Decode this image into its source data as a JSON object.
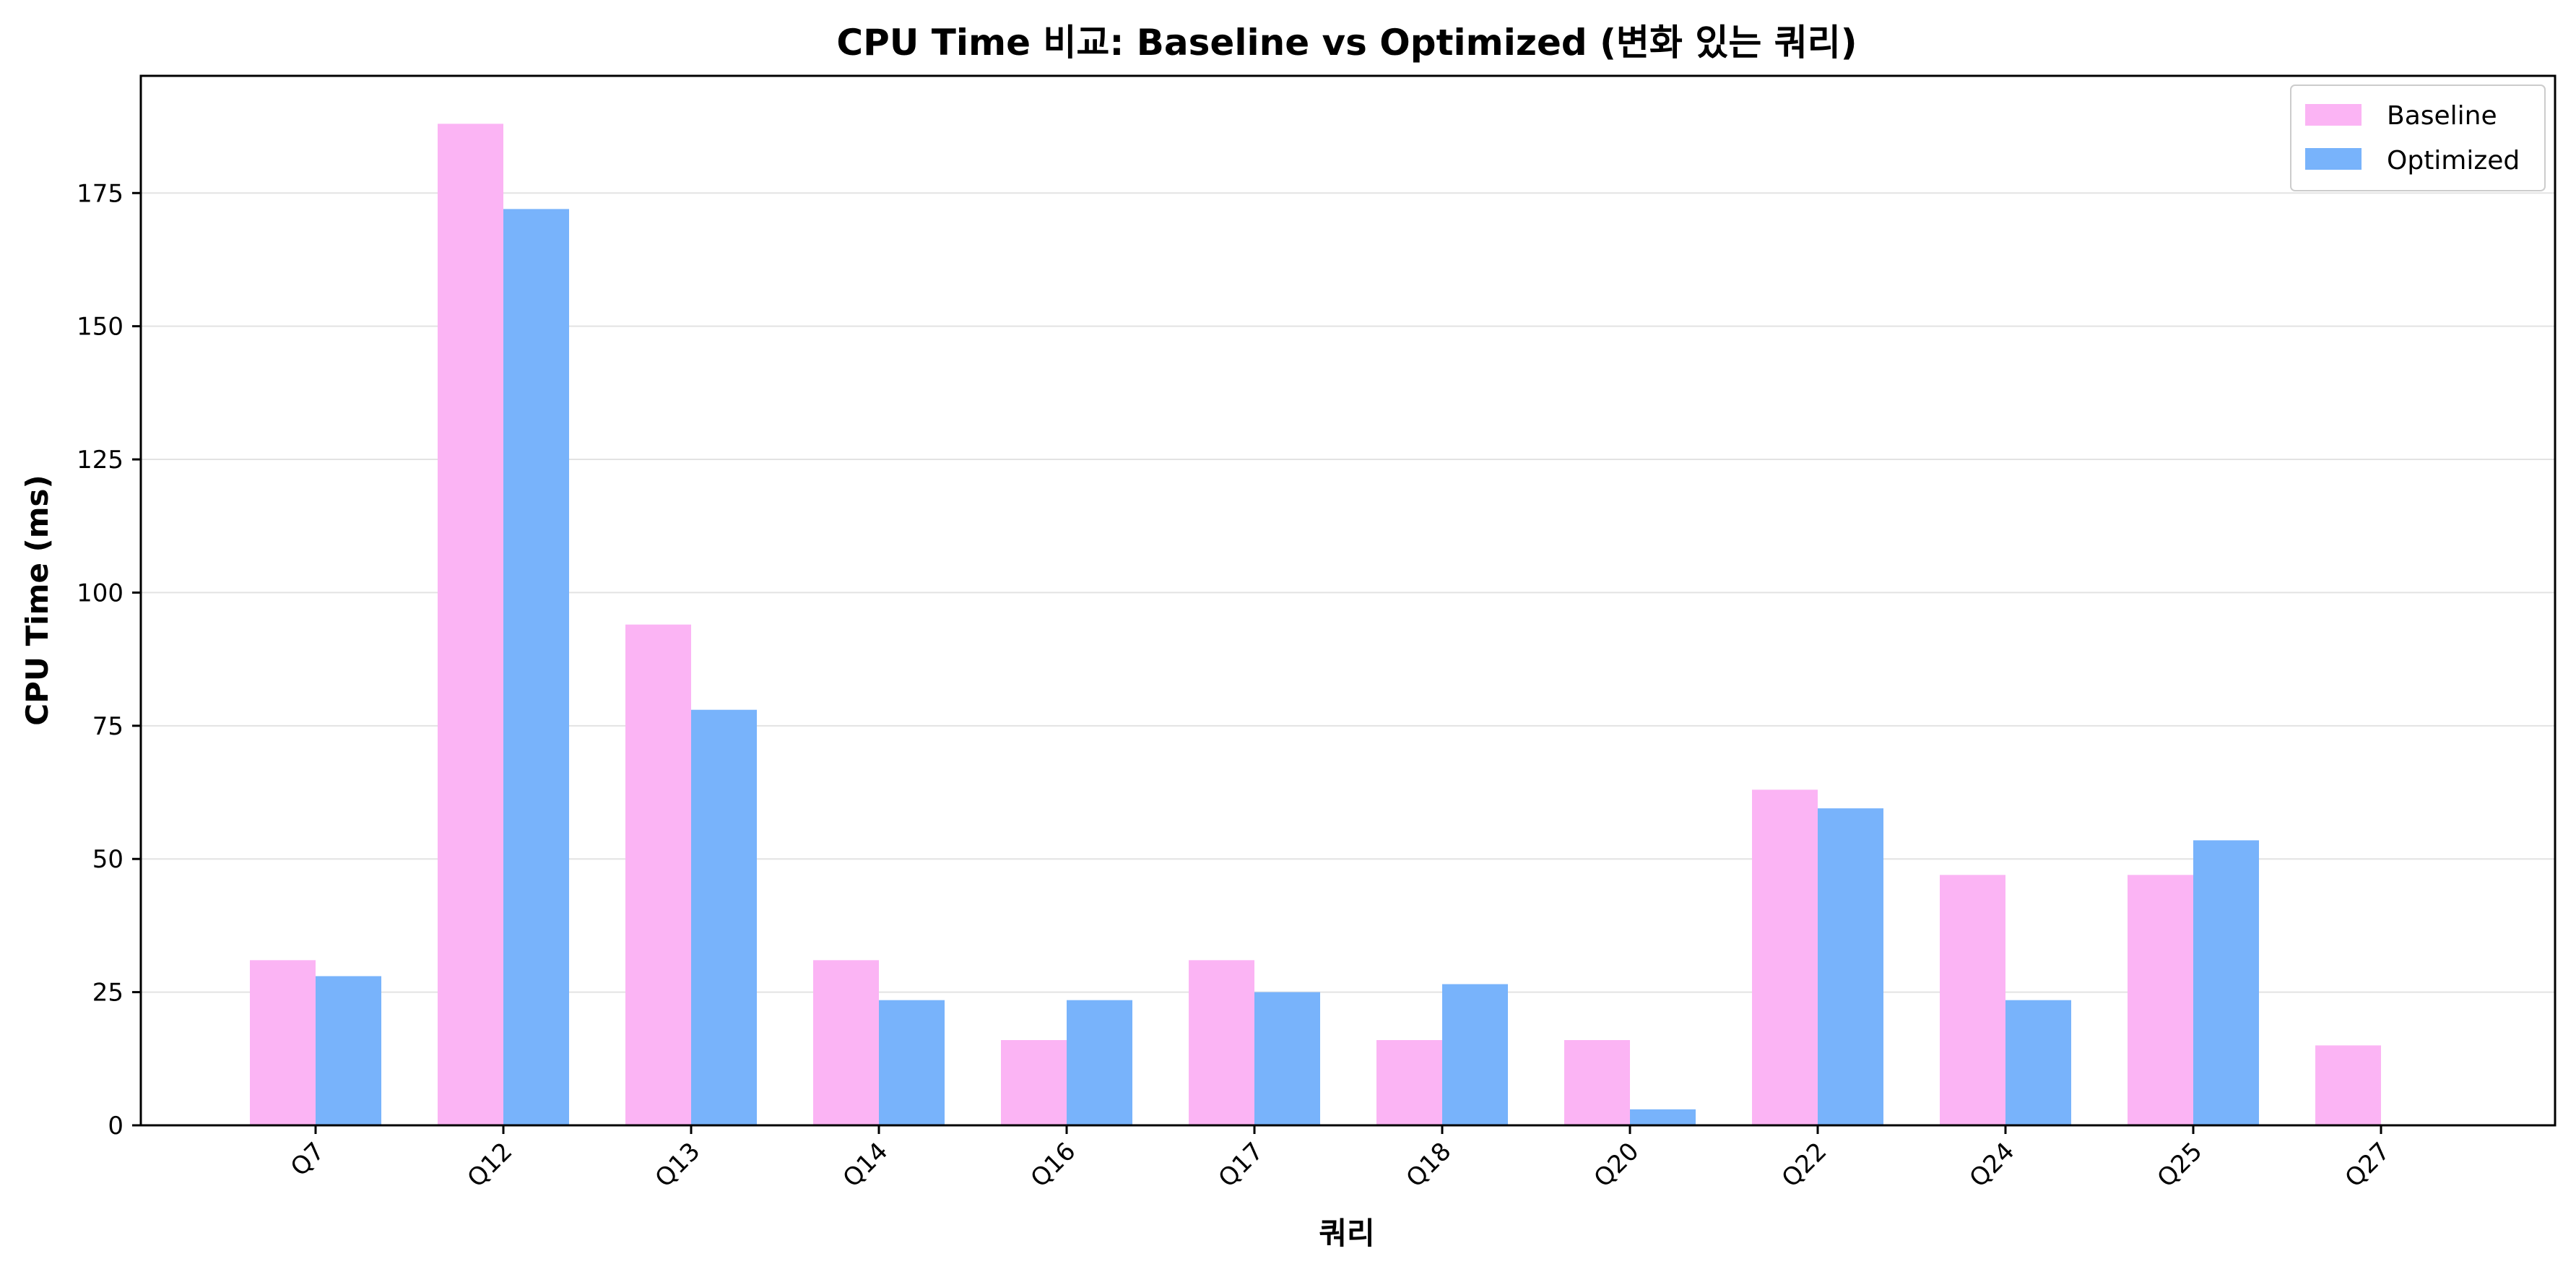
{
  "chart_data": {
    "type": "bar",
    "title": "CPU Time 비교: Baseline vs Optimized (변화 있는 쿼리)",
    "xlabel": "쿼리",
    "ylabel": "CPU Time (ms)",
    "categories": [
      "Q7",
      "Q12",
      "Q13",
      "Q14",
      "Q16",
      "Q17",
      "Q18",
      "Q20",
      "Q22",
      "Q24",
      "Q25",
      "Q27"
    ],
    "series": [
      {
        "name": "Baseline",
        "color": "#fbb4f4",
        "values": [
          31,
          188,
          94,
          31,
          16,
          31,
          16,
          16,
          63,
          47,
          47,
          15
        ]
      },
      {
        "name": "Optimized",
        "color": "#78b3fb",
        "values": [
          28,
          172,
          78,
          23.5,
          23.5,
          25,
          26.5,
          3,
          59.5,
          23.5,
          53.5,
          0
        ]
      }
    ],
    "ylim": [
      0,
      197
    ],
    "yticks": [
      0,
      25,
      50,
      75,
      100,
      125,
      150,
      175
    ],
    "grid": "y",
    "legend_position": "top-right"
  }
}
